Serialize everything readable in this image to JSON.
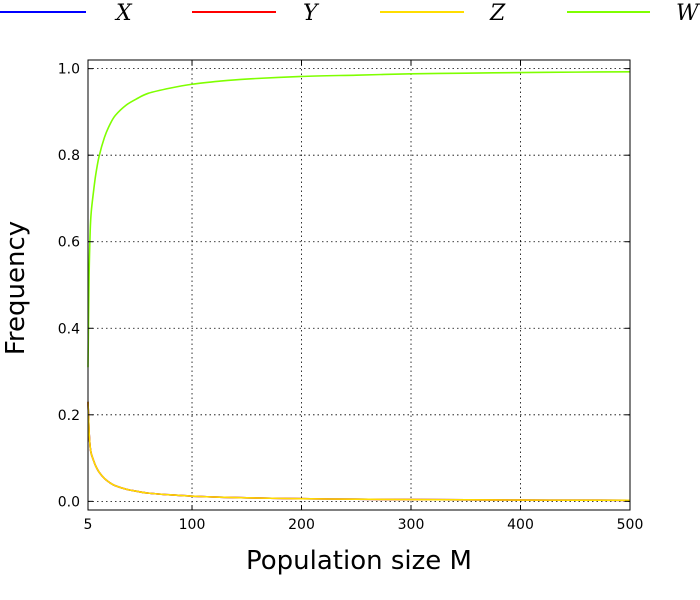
{
  "chart_data": {
    "type": "line",
    "xlabel": "Population size M",
    "ylabel": "Frequency",
    "xlim": [
      5,
      500
    ],
    "ylim": [
      -0.02,
      1.02
    ],
    "xticks": [
      5,
      100,
      200,
      300,
      400,
      500
    ],
    "xtick_labels": [
      "5",
      "100",
      "200",
      "300",
      "400",
      "500"
    ],
    "yticks": [
      0.0,
      0.2,
      0.4,
      0.6,
      0.8,
      1.0
    ],
    "ytick_labels": [
      "0.0",
      "0.2",
      "0.4",
      "0.6",
      "0.8",
      "1.0"
    ],
    "grid": true,
    "legend_position": "top",
    "x": [
      5,
      6,
      7,
      8,
      10,
      12,
      15,
      20,
      25,
      30,
      40,
      50,
      60,
      80,
      100,
      125,
      150,
      200,
      250,
      300,
      350,
      400,
      450,
      500
    ],
    "series": [
      {
        "name": "X",
        "color": "#0000ff",
        "values": [
          0.23,
          0.16,
          0.125,
          0.11,
          0.095,
          0.082,
          0.068,
          0.053,
          0.043,
          0.036,
          0.028,
          0.023,
          0.019,
          0.015,
          0.012,
          0.0097,
          0.0081,
          0.0061,
          0.0049,
          0.0041,
          0.0035,
          0.003,
          0.0027,
          0.0024
        ]
      },
      {
        "name": "Y",
        "color": "#ff0000",
        "values": [
          0.23,
          0.16,
          0.125,
          0.11,
          0.095,
          0.082,
          0.068,
          0.053,
          0.043,
          0.036,
          0.028,
          0.023,
          0.019,
          0.015,
          0.012,
          0.0097,
          0.0081,
          0.0061,
          0.0049,
          0.0041,
          0.0035,
          0.003,
          0.0027,
          0.0024
        ]
      },
      {
        "name": "Z",
        "color": "#ffdd00",
        "values": [
          0.23,
          0.16,
          0.125,
          0.11,
          0.095,
          0.082,
          0.068,
          0.053,
          0.043,
          0.036,
          0.028,
          0.023,
          0.019,
          0.015,
          0.012,
          0.0097,
          0.0081,
          0.0061,
          0.0049,
          0.0041,
          0.0035,
          0.003,
          0.0027,
          0.0024
        ]
      },
      {
        "name": "W",
        "color": "#7fff00",
        "values": [
          0.31,
          0.52,
          0.625,
          0.67,
          0.715,
          0.754,
          0.796,
          0.841,
          0.871,
          0.892,
          0.916,
          0.931,
          0.943,
          0.955,
          0.964,
          0.971,
          0.976,
          0.982,
          0.985,
          0.988,
          0.9895,
          0.991,
          0.992,
          0.9928
        ]
      }
    ]
  }
}
